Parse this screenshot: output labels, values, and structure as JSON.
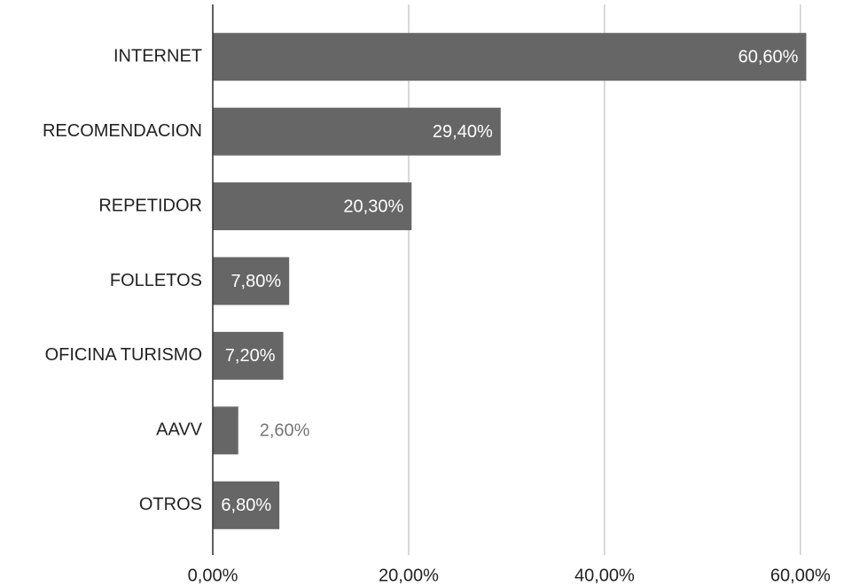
{
  "chart_data": {
    "type": "barh",
    "categories": [
      "INTERNET",
      "RECOMENDACION",
      "REPETIDOR",
      "FOLLETOS",
      "OFICINA TURISMO",
      "AAVV",
      "OTROS"
    ],
    "values": [
      60.6,
      29.4,
      20.3,
      7.8,
      7.2,
      2.6,
      6.8
    ],
    "value_labels": [
      "60,60%",
      "29,40%",
      "20,30%",
      "7,80%",
      "7,20%",
      "2,60%",
      "6,80%"
    ],
    "color": "#666666",
    "xlim": [
      0,
      64
    ],
    "xticks": [
      {
        "value": 0,
        "label": "0,00%"
      },
      {
        "value": 20,
        "label": "20,00%"
      },
      {
        "value": 40,
        "label": "40,00%"
      },
      {
        "value": 60,
        "label": "60,00%"
      }
    ],
    "grid": true
  }
}
